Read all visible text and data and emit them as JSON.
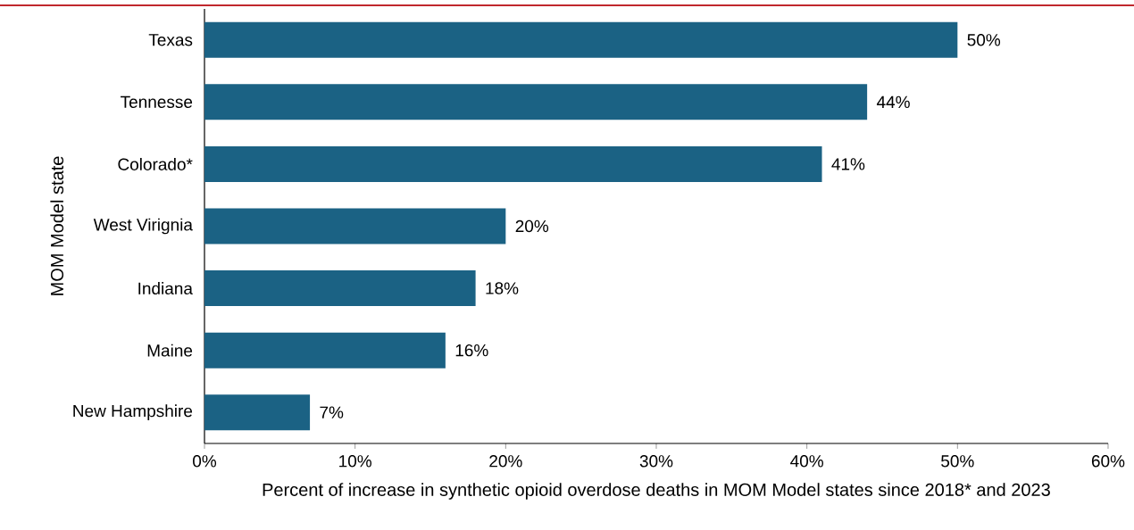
{
  "chart_data": {
    "type": "bar",
    "orientation": "horizontal",
    "categories": [
      "Texas",
      "Tennesse",
      "Colorado*",
      "West Virignia",
      "Indiana",
      "Maine",
      "New Hampshire"
    ],
    "values": [
      50,
      44,
      41,
      20,
      18,
      16,
      7
    ],
    "value_labels": [
      "50%",
      "44%",
      "41%",
      "20%",
      "18%",
      "16%",
      "7%"
    ],
    "color": "#1b6284",
    "xlim": [
      0,
      60
    ],
    "xticks": [
      {
        "value": 0,
        "label": "0%"
      },
      {
        "value": 10,
        "label": "10%"
      },
      {
        "value": 20,
        "label": "20%"
      },
      {
        "value": 30,
        "label": "30%"
      },
      {
        "value": 40,
        "label": "40%"
      },
      {
        "value": 50,
        "label": "50%"
      },
      {
        "value": 60,
        "label": "60%"
      }
    ],
    "xlabel": "Percent of increase in synthetic opioid overdose deaths in MOM Model states since 2018* and 2023",
    "ylabel": "MOM Model state",
    "grid": false
  }
}
